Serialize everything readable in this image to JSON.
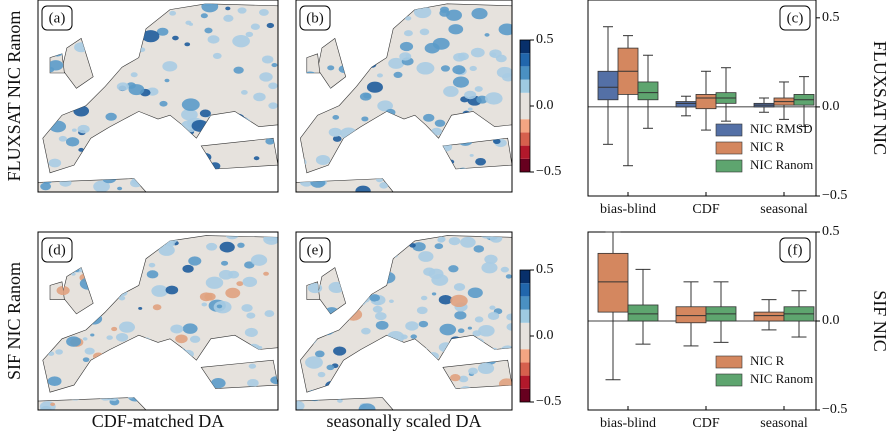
{
  "figure": {
    "row_labels": [
      "FLUXSAT NIC Ranom",
      "SIF NIC Ranom"
    ],
    "column_labels": [
      "CDF-matched DA",
      "seasonally scaled DA"
    ],
    "panel_labels": [
      "(a)",
      "(b)",
      "(d)",
      "(e)"
    ],
    "colorbar": {
      "lim": [
        -0.5,
        0.5
      ],
      "ticks": [
        0.5,
        {
          "value": 0,
          "label": "0.0"
        },
        {
          "value": -0.5,
          "label": "−0.5"
        }
      ],
      "colors": [
        "#67001f",
        "#b2182b",
        "#d6604d",
        "#f4a582",
        "#e6e2dd",
        "#e6e2dd",
        "#9ecae1",
        "#4a90c2",
        "#2166ac",
        "#08306b"
      ]
    }
  },
  "chart_data": [
    {
      "type": "box",
      "panel_label": "(c)",
      "y_axis_label": "FLUXSAT NIC",
      "categories": [
        "bias-blind",
        "CDF",
        "seasonal"
      ],
      "ylim": [
        -0.5,
        0.6
      ],
      "yticks": [
        0.5,
        {
          "value": 0,
          "label": "0.0"
        },
        {
          "value": -0.5,
          "label": "−0.5"
        }
      ],
      "legend": "lower right",
      "series": [
        {
          "name": "NIC RMSD",
          "color": "#5470a6",
          "values": [
            {
              "whislo": -0.21,
              "q1": 0.04,
              "med": 0.11,
              "q3": 0.2,
              "whishi": 0.45
            },
            {
              "whislo": -0.05,
              "q1": 0.0,
              "med": 0.02,
              "q3": 0.03,
              "whishi": 0.06
            },
            {
              "whislo": -0.03,
              "q1": 0.0,
              "med": 0.01,
              "q3": 0.02,
              "whishi": 0.05
            }
          ]
        },
        {
          "name": "NIC R",
          "color": "#d4875f",
          "values": [
            {
              "whislo": -0.33,
              "q1": 0.07,
              "med": 0.2,
              "q3": 0.33,
              "whishi": 0.4
            },
            {
              "whislo": -0.13,
              "q1": -0.01,
              "med": 0.05,
              "q3": 0.07,
              "whishi": 0.2
            },
            {
              "whislo": -0.07,
              "q1": 0.01,
              "med": 0.03,
              "q3": 0.05,
              "whishi": 0.14
            }
          ]
        },
        {
          "name": "NIC Ranom",
          "color": "#5ea56f",
          "values": [
            {
              "whislo": -0.12,
              "q1": 0.04,
              "med": 0.08,
              "q3": 0.14,
              "whishi": 0.29
            },
            {
              "whislo": -0.08,
              "q1": 0.02,
              "med": 0.05,
              "q3": 0.08,
              "whishi": 0.22
            },
            {
              "whislo": -0.11,
              "q1": 0.01,
              "med": 0.04,
              "q3": 0.07,
              "whishi": 0.17
            }
          ]
        }
      ]
    },
    {
      "type": "box",
      "panel_label": "(f)",
      "y_axis_label": "SIF NIC",
      "categories": [
        "bias-blind",
        "CDF",
        "seasonal"
      ],
      "ylim": [
        -0.5,
        0.5
      ],
      "yticks": [
        0.5,
        {
          "value": 0,
          "label": "0.0"
        },
        {
          "value": -0.5,
          "label": "−0.5"
        }
      ],
      "legend": "lower right",
      "series": [
        {
          "name": "NIC R",
          "color": "#d4875f",
          "values": [
            {
              "whislo": -0.33,
              "q1": 0.05,
              "med": 0.22,
              "q3": 0.38,
              "whishi": 0.5
            },
            {
              "whislo": -0.14,
              "q1": -0.01,
              "med": 0.03,
              "q3": 0.08,
              "whishi": 0.22
            },
            {
              "whislo": -0.05,
              "q1": 0.0,
              "med": 0.03,
              "q3": 0.05,
              "whishi": 0.12
            }
          ]
        },
        {
          "name": "NIC Ranom",
          "color": "#5ea56f",
          "values": [
            {
              "whislo": -0.13,
              "q1": 0.0,
              "med": 0.04,
              "q3": 0.09,
              "whishi": 0.29
            },
            {
              "whislo": -0.12,
              "q1": 0.0,
              "med": 0.04,
              "q3": 0.08,
              "whishi": 0.22
            },
            {
              "whislo": -0.09,
              "q1": 0.0,
              "med": 0.04,
              "q3": 0.08,
              "whishi": 0.17
            }
          ]
        }
      ]
    }
  ]
}
